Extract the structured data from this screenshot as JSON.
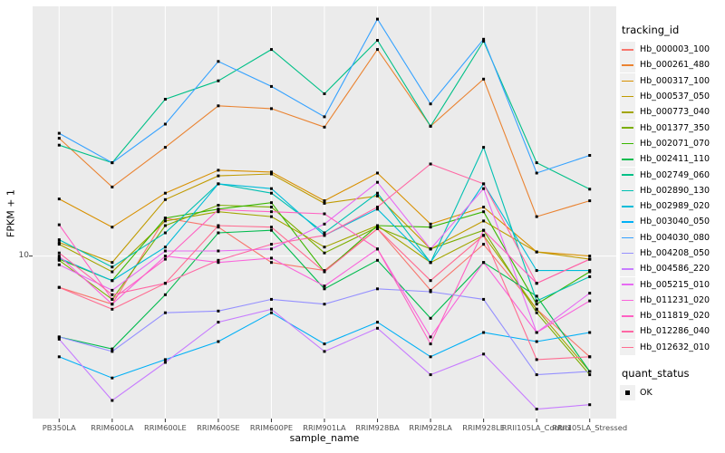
{
  "figure": {
    "y_axis_title": "FPKM + 1",
    "x_axis_title": "sample_name",
    "y_tick_label": "10"
  },
  "legend": {
    "tracking_title": "tracking_id",
    "quant_title": "quant_status",
    "quant_items": [
      {
        "label": "OK",
        "marker": "black-square"
      }
    ]
  },
  "colors": {
    "panel_bg": "#EBEBEB",
    "grid": "#FFFFFF",
    "tick_mark": "#333333",
    "tick_text": "#4D4D4D",
    "axis_text": "#000000",
    "point": "#000000",
    "legend_key_bg": "#F0F0F0"
  },
  "chart_data": {
    "type": "line",
    "title": "",
    "xlabel": "sample_name",
    "ylabel": "FPKM + 1",
    "y_scale": "log10",
    "y_ticks": [
      10
    ],
    "ylim": [
      2.1,
      110
    ],
    "grid": "major-only",
    "legend_position": "right",
    "point_shape": "square",
    "x_categories": [
      "PB350LA",
      "RRIM600LA",
      "RRIM600LE",
      "RRIM600SE",
      "RRIM600PE",
      "RRIM901LA",
      "RRIM928BA",
      "RRIM928LA",
      "RRIM928LE",
      "RRII105LA_Control",
      "RRII105LA_Stressed"
    ],
    "series": [
      {
        "name": "Hb_000003_100",
        "color": "#F8766D",
        "values": [
          7.4,
          6.3,
          14.4,
          13.2,
          9.4,
          8.7,
          13.0,
          7.2,
          11.2,
          6.0,
          3.8
        ]
      },
      {
        "name": "Hb_000261_480",
        "color": "#EA8331",
        "values": [
          31.0,
          19.4,
          28.4,
          42.3,
          41.2,
          34.5,
          72.7,
          34.8,
          54.7,
          14.6,
          17.0
        ]
      },
      {
        "name": "Hb_000317_100",
        "color": "#D89000",
        "values": [
          17.3,
          13.2,
          18.3,
          22.8,
          22.4,
          17.0,
          22.2,
          13.6,
          16.0,
          10.4,
          10.0
        ]
      },
      {
        "name": "Hb_000537_050",
        "color": "#C09B00",
        "values": [
          11.4,
          9.4,
          17.2,
          21.6,
          22.0,
          16.6,
          17.8,
          10.7,
          14.0,
          10.4,
          9.7
        ]
      },
      {
        "name": "Hb_000773_040",
        "color": "#A3A500",
        "values": [
          11.2,
          8.6,
          14.0,
          15.3,
          14.6,
          10.9,
          13.4,
          9.4,
          12.2,
          6.0,
          3.3
        ]
      },
      {
        "name": "Hb_001377_350",
        "color": "#7CAE00",
        "values": [
          9.6,
          6.6,
          13.4,
          16.3,
          16.0,
          10.3,
          13.2,
          10.7,
          12.8,
          5.8,
          3.2
        ]
      },
      {
        "name": "Hb_002071_070",
        "color": "#39B600",
        "values": [
          9.7,
          7.9,
          14.4,
          15.7,
          16.7,
          8.6,
          13.4,
          13.2,
          15.3,
          6.3,
          8.6
        ]
      },
      {
        "name": "Hb_002411_110",
        "color": "#00BB4E",
        "values": [
          4.6,
          4.1,
          6.9,
          12.5,
          12.8,
          7.3,
          9.6,
          5.5,
          9.4,
          6.8,
          3.3
        ]
      },
      {
        "name": "Hb_002749_060",
        "color": "#00C087",
        "values": [
          29.0,
          24.5,
          45.1,
          53.8,
          72.7,
          47.5,
          79.4,
          34.8,
          78.7,
          24.5,
          19.0
        ]
      },
      {
        "name": "Hb_002890_130",
        "color": "#00C0B2",
        "values": [
          11.7,
          9.0,
          12.5,
          20.0,
          18.3,
          12.5,
          18.3,
          9.4,
          28.4,
          6.5,
          8.2
        ]
      },
      {
        "name": "Hb_002989_020",
        "color": "#00BCD8",
        "values": [
          9.8,
          7.9,
          10.9,
          20.0,
          19.1,
          12.2,
          15.7,
          9.4,
          20.0,
          8.7,
          8.7
        ]
      },
      {
        "name": "Hb_003040_050",
        "color": "#00B0F6",
        "values": [
          3.8,
          3.1,
          3.7,
          4.4,
          5.8,
          4.3,
          5.3,
          3.8,
          4.8,
          4.4,
          4.8
        ]
      },
      {
        "name": "Hb_004030_080",
        "color": "#35A2FF",
        "values": [
          32.5,
          24.5,
          35.5,
          64.8,
          51.0,
          38.1,
          97.3,
          43.1,
          80.2,
          22.2,
          26.3
        ]
      },
      {
        "name": "Hb_004208_050",
        "color": "#9590FF",
        "values": [
          4.6,
          4.0,
          5.8,
          5.9,
          6.6,
          6.3,
          7.3,
          7.1,
          6.6,
          3.2,
          3.3
        ]
      },
      {
        "name": "Hb_004586_220",
        "color": "#C77CFF",
        "values": [
          4.5,
          2.5,
          3.6,
          5.3,
          6.0,
          4.0,
          5.0,
          3.2,
          3.9,
          2.3,
          2.4
        ]
      },
      {
        "name": "Hb_005215_010",
        "color": "#E76BF3",
        "values": [
          9.2,
          7.2,
          10.5,
          10.5,
          10.7,
          13.6,
          20.3,
          10.7,
          19.1,
          4.8,
          7.0
        ]
      },
      {
        "name": "Hb_011231_020",
        "color": "#FA62DB",
        "values": [
          10.0,
          6.3,
          10.0,
          9.4,
          9.8,
          7.5,
          10.7,
          4.6,
          9.4,
          4.8,
          6.5
        ]
      },
      {
        "name": "Hb_011819_020",
        "color": "#FF61C3",
        "values": [
          13.5,
          6.6,
          9.7,
          15.6,
          15.3,
          15.0,
          10.7,
          4.3,
          12.8,
          7.7,
          9.7
        ]
      },
      {
        "name": "Hb_012286_040",
        "color": "#FF67A4",
        "values": [
          10.3,
          6.9,
          7.7,
          9.6,
          11.2,
          12.2,
          16.0,
          24.2,
          20.0,
          7.7,
          9.7
        ]
      },
      {
        "name": "Hb_012632_010",
        "color": "#FF6C91",
        "values": [
          7.4,
          6.0,
          7.7,
          13.4,
          13.2,
          8.6,
          13.0,
          7.9,
          12.2,
          3.7,
          3.8
        ]
      }
    ],
    "quant_status": "OK"
  }
}
